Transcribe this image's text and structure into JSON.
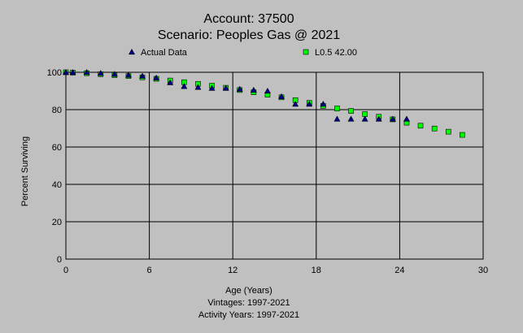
{
  "chart_data": {
    "type": "scatter",
    "title": "Account: 37500",
    "subtitle": "Scenario: Peoples Gas @ 2021",
    "xlabel": "Age (Years)",
    "ylabel": "Percent Surviving",
    "footnotes": [
      "Vintages: 1997-2021",
      "Activity Years: 1997-2021"
    ],
    "xlim": [
      0,
      30
    ],
    "ylim": [
      0,
      100
    ],
    "xticks": [
      "0",
      "6",
      "12",
      "18",
      "24",
      "30"
    ],
    "yticks": [
      "0",
      "20",
      "40",
      "60",
      "80",
      "100"
    ],
    "grid": true,
    "legend_position": "top",
    "series": [
      {
        "name": "Actual Data",
        "marker": "triangle",
        "color": "#000080",
        "x": [
          0,
          0.5,
          1.5,
          2.5,
          3.5,
          4.5,
          5.5,
          6.5,
          7.5,
          8.5,
          9.5,
          10.5,
          11.5,
          12.5,
          13.5,
          14.5,
          15.5,
          16.5,
          17.5,
          18.5,
          19.5,
          20.5,
          21.5,
          22.5,
          23.5,
          24.5
        ],
        "y": [
          100,
          100,
          100,
          99.5,
          99,
          98.5,
          98,
          97,
          94.5,
          92.5,
          92,
          91.5,
          91.5,
          91,
          90.5,
          90,
          87,
          83,
          83,
          83,
          75,
          75,
          75,
          75,
          75,
          75
        ]
      },
      {
        "name": "L0.5 42.00",
        "marker": "square",
        "color": "#00ff00",
        "x": [
          0,
          0.5,
          1.5,
          2.5,
          3.5,
          4.5,
          5.5,
          6.5,
          7.5,
          8.5,
          9.5,
          10.5,
          11.5,
          12.5,
          13.5,
          14.5,
          15.5,
          16.5,
          17.5,
          18.5,
          19.5,
          20.5,
          21.5,
          22.5,
          23.5,
          24.5,
          25.5,
          26.5,
          27.5,
          28.5
        ],
        "y": [
          100,
          99.8,
          99.5,
          99,
          98.5,
          98,
          97.3,
          96.5,
          95.6,
          94.7,
          93.8,
          92.8,
          91.7,
          90.5,
          89.3,
          88,
          86.6,
          85.1,
          83.6,
          82,
          80.6,
          79.3,
          77.6,
          76.2,
          74.8,
          73,
          71.4,
          69.9,
          68.2,
          66.5
        ]
      }
    ]
  }
}
